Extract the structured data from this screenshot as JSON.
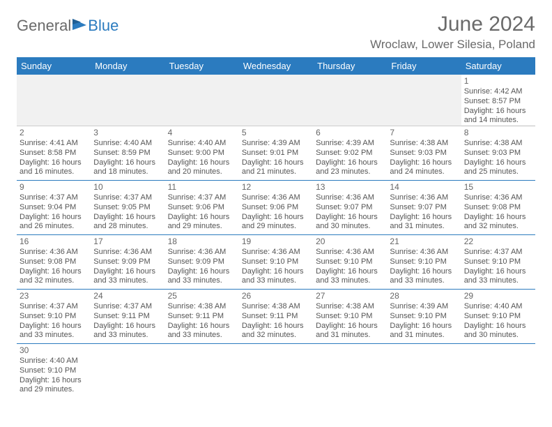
{
  "logo": {
    "part1": "General",
    "part2": "Blue"
  },
  "title": "June 2024",
  "location": "Wroclaw, Lower Silesia, Poland",
  "colors": {
    "header_bg": "#2b7bbf",
    "header_text": "#ffffff",
    "body_text": "#555555",
    "title_text": "#6a6a6a",
    "row_border": "#2b7bbf",
    "blank_bg": "#f1f1f1"
  },
  "typography": {
    "title_fontsize": 30,
    "location_fontsize": 17,
    "dayheader_fontsize": 13,
    "cell_fontsize": 11
  },
  "day_headers": [
    "Sunday",
    "Monday",
    "Tuesday",
    "Wednesday",
    "Thursday",
    "Friday",
    "Saturday"
  ],
  "weeks": [
    [
      null,
      null,
      null,
      null,
      null,
      null,
      {
        "n": "1",
        "sr": "Sunrise: 4:42 AM",
        "ss": "Sunset: 8:57 PM",
        "dl1": "Daylight: 16 hours",
        "dl2": "and 14 minutes."
      }
    ],
    [
      {
        "n": "2",
        "sr": "Sunrise: 4:41 AM",
        "ss": "Sunset: 8:58 PM",
        "dl1": "Daylight: 16 hours",
        "dl2": "and 16 minutes."
      },
      {
        "n": "3",
        "sr": "Sunrise: 4:40 AM",
        "ss": "Sunset: 8:59 PM",
        "dl1": "Daylight: 16 hours",
        "dl2": "and 18 minutes."
      },
      {
        "n": "4",
        "sr": "Sunrise: 4:40 AM",
        "ss": "Sunset: 9:00 PM",
        "dl1": "Daylight: 16 hours",
        "dl2": "and 20 minutes."
      },
      {
        "n": "5",
        "sr": "Sunrise: 4:39 AM",
        "ss": "Sunset: 9:01 PM",
        "dl1": "Daylight: 16 hours",
        "dl2": "and 21 minutes."
      },
      {
        "n": "6",
        "sr": "Sunrise: 4:39 AM",
        "ss": "Sunset: 9:02 PM",
        "dl1": "Daylight: 16 hours",
        "dl2": "and 23 minutes."
      },
      {
        "n": "7",
        "sr": "Sunrise: 4:38 AM",
        "ss": "Sunset: 9:03 PM",
        "dl1": "Daylight: 16 hours",
        "dl2": "and 24 minutes."
      },
      {
        "n": "8",
        "sr": "Sunrise: 4:38 AM",
        "ss": "Sunset: 9:03 PM",
        "dl1": "Daylight: 16 hours",
        "dl2": "and 25 minutes."
      }
    ],
    [
      {
        "n": "9",
        "sr": "Sunrise: 4:37 AM",
        "ss": "Sunset: 9:04 PM",
        "dl1": "Daylight: 16 hours",
        "dl2": "and 26 minutes."
      },
      {
        "n": "10",
        "sr": "Sunrise: 4:37 AM",
        "ss": "Sunset: 9:05 PM",
        "dl1": "Daylight: 16 hours",
        "dl2": "and 28 minutes."
      },
      {
        "n": "11",
        "sr": "Sunrise: 4:37 AM",
        "ss": "Sunset: 9:06 PM",
        "dl1": "Daylight: 16 hours",
        "dl2": "and 29 minutes."
      },
      {
        "n": "12",
        "sr": "Sunrise: 4:36 AM",
        "ss": "Sunset: 9:06 PM",
        "dl1": "Daylight: 16 hours",
        "dl2": "and 29 minutes."
      },
      {
        "n": "13",
        "sr": "Sunrise: 4:36 AM",
        "ss": "Sunset: 9:07 PM",
        "dl1": "Daylight: 16 hours",
        "dl2": "and 30 minutes."
      },
      {
        "n": "14",
        "sr": "Sunrise: 4:36 AM",
        "ss": "Sunset: 9:07 PM",
        "dl1": "Daylight: 16 hours",
        "dl2": "and 31 minutes."
      },
      {
        "n": "15",
        "sr": "Sunrise: 4:36 AM",
        "ss": "Sunset: 9:08 PM",
        "dl1": "Daylight: 16 hours",
        "dl2": "and 32 minutes."
      }
    ],
    [
      {
        "n": "16",
        "sr": "Sunrise: 4:36 AM",
        "ss": "Sunset: 9:08 PM",
        "dl1": "Daylight: 16 hours",
        "dl2": "and 32 minutes."
      },
      {
        "n": "17",
        "sr": "Sunrise: 4:36 AM",
        "ss": "Sunset: 9:09 PM",
        "dl1": "Daylight: 16 hours",
        "dl2": "and 33 minutes."
      },
      {
        "n": "18",
        "sr": "Sunrise: 4:36 AM",
        "ss": "Sunset: 9:09 PM",
        "dl1": "Daylight: 16 hours",
        "dl2": "and 33 minutes."
      },
      {
        "n": "19",
        "sr": "Sunrise: 4:36 AM",
        "ss": "Sunset: 9:10 PM",
        "dl1": "Daylight: 16 hours",
        "dl2": "and 33 minutes."
      },
      {
        "n": "20",
        "sr": "Sunrise: 4:36 AM",
        "ss": "Sunset: 9:10 PM",
        "dl1": "Daylight: 16 hours",
        "dl2": "and 33 minutes."
      },
      {
        "n": "21",
        "sr": "Sunrise: 4:36 AM",
        "ss": "Sunset: 9:10 PM",
        "dl1": "Daylight: 16 hours",
        "dl2": "and 33 minutes."
      },
      {
        "n": "22",
        "sr": "Sunrise: 4:37 AM",
        "ss": "Sunset: 9:10 PM",
        "dl1": "Daylight: 16 hours",
        "dl2": "and 33 minutes."
      }
    ],
    [
      {
        "n": "23",
        "sr": "Sunrise: 4:37 AM",
        "ss": "Sunset: 9:10 PM",
        "dl1": "Daylight: 16 hours",
        "dl2": "and 33 minutes."
      },
      {
        "n": "24",
        "sr": "Sunrise: 4:37 AM",
        "ss": "Sunset: 9:11 PM",
        "dl1": "Daylight: 16 hours",
        "dl2": "and 33 minutes."
      },
      {
        "n": "25",
        "sr": "Sunrise: 4:38 AM",
        "ss": "Sunset: 9:11 PM",
        "dl1": "Daylight: 16 hours",
        "dl2": "and 33 minutes."
      },
      {
        "n": "26",
        "sr": "Sunrise: 4:38 AM",
        "ss": "Sunset: 9:11 PM",
        "dl1": "Daylight: 16 hours",
        "dl2": "and 32 minutes."
      },
      {
        "n": "27",
        "sr": "Sunrise: 4:38 AM",
        "ss": "Sunset: 9:10 PM",
        "dl1": "Daylight: 16 hours",
        "dl2": "and 31 minutes."
      },
      {
        "n": "28",
        "sr": "Sunrise: 4:39 AM",
        "ss": "Sunset: 9:10 PM",
        "dl1": "Daylight: 16 hours",
        "dl2": "and 31 minutes."
      },
      {
        "n": "29",
        "sr": "Sunrise: 4:40 AM",
        "ss": "Sunset: 9:10 PM",
        "dl1": "Daylight: 16 hours",
        "dl2": "and 30 minutes."
      }
    ],
    [
      {
        "n": "30",
        "sr": "Sunrise: 4:40 AM",
        "ss": "Sunset: 9:10 PM",
        "dl1": "Daylight: 16 hours",
        "dl2": "and 29 minutes."
      },
      null,
      null,
      null,
      null,
      null,
      null
    ]
  ]
}
